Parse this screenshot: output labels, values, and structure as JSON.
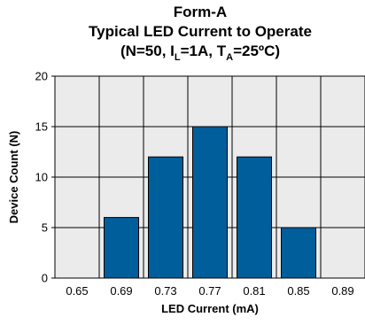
{
  "chart_data": {
    "type": "bar",
    "title_line1": "Form-A",
    "title_line2": "Typical LED Current to Operate",
    "title_line3": {
      "prefix": "(N=50, I",
      "sub1": "L",
      "mid": "=1A, T",
      "sub2": "A",
      "suffix": "=25ºC)"
    },
    "xlabel": "LED Current (mA)",
    "ylabel": "Device Count (N)",
    "x_ticks": [
      "0.65",
      "0.69",
      "0.73",
      "0.77",
      "0.81",
      "0.85",
      "0.89"
    ],
    "y_ticks": [
      0,
      5,
      10,
      15,
      20
    ],
    "ylim": [
      0,
      20
    ],
    "categories": [
      "0.69",
      "0.73",
      "0.77",
      "0.81",
      "0.85"
    ],
    "values": [
      6,
      12,
      15,
      12,
      5
    ],
    "grid": true,
    "bar_color": "#005e9b",
    "plot_background": "#ebebeb"
  }
}
